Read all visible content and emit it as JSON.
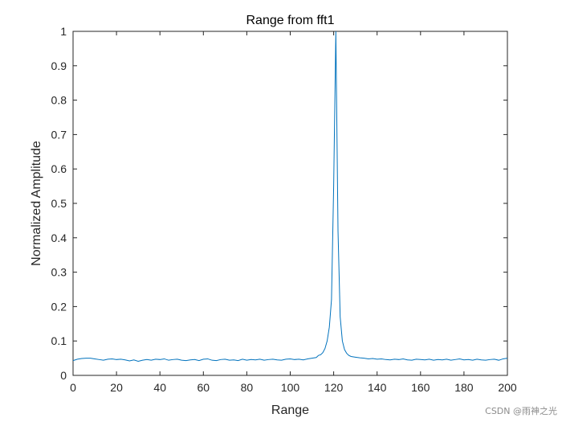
{
  "chart_data": {
    "type": "line",
    "title": "Range from fft1",
    "xlabel": "Range",
    "ylabel": "Normalized Amplitude",
    "xlim": [
      0,
      200
    ],
    "ylim": [
      0,
      1
    ],
    "xticks": [
      "0",
      "20",
      "40",
      "60",
      "80",
      "100",
      "120",
      "140",
      "160",
      "180",
      "200"
    ],
    "yticks": [
      "0",
      "0.1",
      "0.2",
      "0.3",
      "0.4",
      "0.5",
      "0.6",
      "0.7",
      "0.8",
      "0.9",
      "1"
    ],
    "grid": false,
    "line_color": "#0072BD",
    "series": [
      {
        "x": [
          0,
          2,
          4,
          6,
          8,
          10,
          12,
          14,
          16,
          18,
          20,
          22,
          24,
          26,
          28,
          30,
          32,
          34,
          36,
          38,
          40,
          42,
          44,
          46,
          48,
          50,
          52,
          54,
          56,
          58,
          60,
          62,
          64,
          66,
          68,
          70,
          72,
          74,
          76,
          78,
          80,
          82,
          84,
          86,
          88,
          90,
          92,
          94,
          96,
          98,
          100,
          102,
          104,
          106,
          108,
          110,
          112,
          113,
          114,
          115,
          116,
          117,
          118,
          119,
          120,
          121,
          122,
          123,
          124,
          125,
          126,
          127,
          128,
          130,
          132,
          134,
          136,
          138,
          140,
          142,
          144,
          146,
          148,
          150,
          152,
          154,
          156,
          158,
          160,
          162,
          164,
          166,
          168,
          170,
          172,
          174,
          176,
          178,
          180,
          182,
          184,
          186,
          188,
          190,
          192,
          194,
          196,
          198,
          200
        ],
        "y": [
          0.043,
          0.047,
          0.049,
          0.05,
          0.05,
          0.048,
          0.046,
          0.044,
          0.047,
          0.048,
          0.046,
          0.047,
          0.045,
          0.042,
          0.045,
          0.041,
          0.044,
          0.046,
          0.044,
          0.047,
          0.046,
          0.048,
          0.044,
          0.046,
          0.047,
          0.044,
          0.043,
          0.045,
          0.046,
          0.043,
          0.047,
          0.048,
          0.044,
          0.043,
          0.046,
          0.047,
          0.044,
          0.045,
          0.043,
          0.047,
          0.044,
          0.046,
          0.045,
          0.047,
          0.044,
          0.046,
          0.047,
          0.045,
          0.044,
          0.047,
          0.048,
          0.046,
          0.047,
          0.045,
          0.048,
          0.05,
          0.052,
          0.058,
          0.06,
          0.066,
          0.078,
          0.1,
          0.14,
          0.22,
          0.55,
          1.0,
          0.42,
          0.17,
          0.1,
          0.075,
          0.064,
          0.058,
          0.055,
          0.053,
          0.051,
          0.05,
          0.048,
          0.049,
          0.047,
          0.048,
          0.046,
          0.045,
          0.047,
          0.046,
          0.048,
          0.045,
          0.044,
          0.047,
          0.046,
          0.045,
          0.047,
          0.044,
          0.046,
          0.045,
          0.047,
          0.044,
          0.046,
          0.048,
          0.045,
          0.046,
          0.044,
          0.047,
          0.045,
          0.044,
          0.046,
          0.047,
          0.044,
          0.048,
          0.05
        ]
      }
    ]
  },
  "watermark": "CSDN @雨神之光"
}
